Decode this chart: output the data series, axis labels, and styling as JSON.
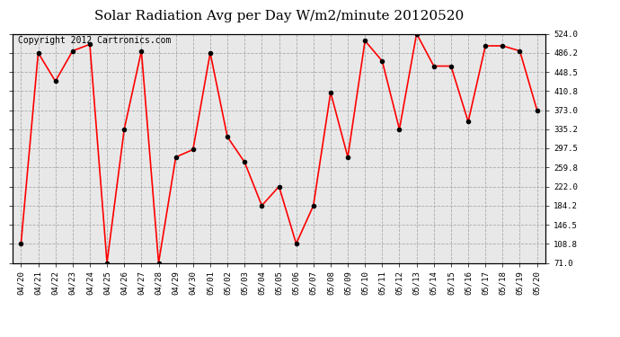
{
  "title": "Solar Radiation Avg per Day W/m2/minute 20120520",
  "copyright_text": "Copyright 2012 Cartronics.com",
  "x_labels": [
    "04/20",
    "04/21",
    "04/22",
    "04/23",
    "04/24",
    "04/25",
    "04/26",
    "04/27",
    "04/28",
    "04/29",
    "04/30",
    "05/01",
    "05/02",
    "05/03",
    "05/04",
    "05/05",
    "05/06",
    "05/07",
    "05/08",
    "05/09",
    "05/10",
    "05/11",
    "05/12",
    "05/13",
    "05/14",
    "05/15",
    "05/16",
    "05/17",
    "05/18",
    "05/19",
    "05/20"
  ],
  "y_values": [
    108.8,
    486.2,
    430.0,
    490.0,
    503.0,
    71.0,
    335.0,
    490.0,
    71.0,
    280.0,
    295.0,
    486.2,
    320.0,
    270.0,
    184.2,
    222.0,
    108.8,
    184.2,
    408.0,
    280.0,
    510.0,
    470.0,
    335.0,
    524.0,
    460.0,
    460.0,
    350.0,
    500.0,
    500.0,
    490.0,
    373.0
  ],
  "line_color": "#ff0000",
  "marker_color": "#000000",
  "background_color": "#ffffff",
  "plot_bg_color": "#e8e8e8",
  "grid_color": "#aaaaaa",
  "ylim": [
    71.0,
    524.0
  ],
  "yticks": [
    71.0,
    108.8,
    146.5,
    184.2,
    222.0,
    259.8,
    297.5,
    335.2,
    373.0,
    410.8,
    448.5,
    486.2,
    524.0
  ],
  "title_fontsize": 11,
  "copyright_fontsize": 7
}
